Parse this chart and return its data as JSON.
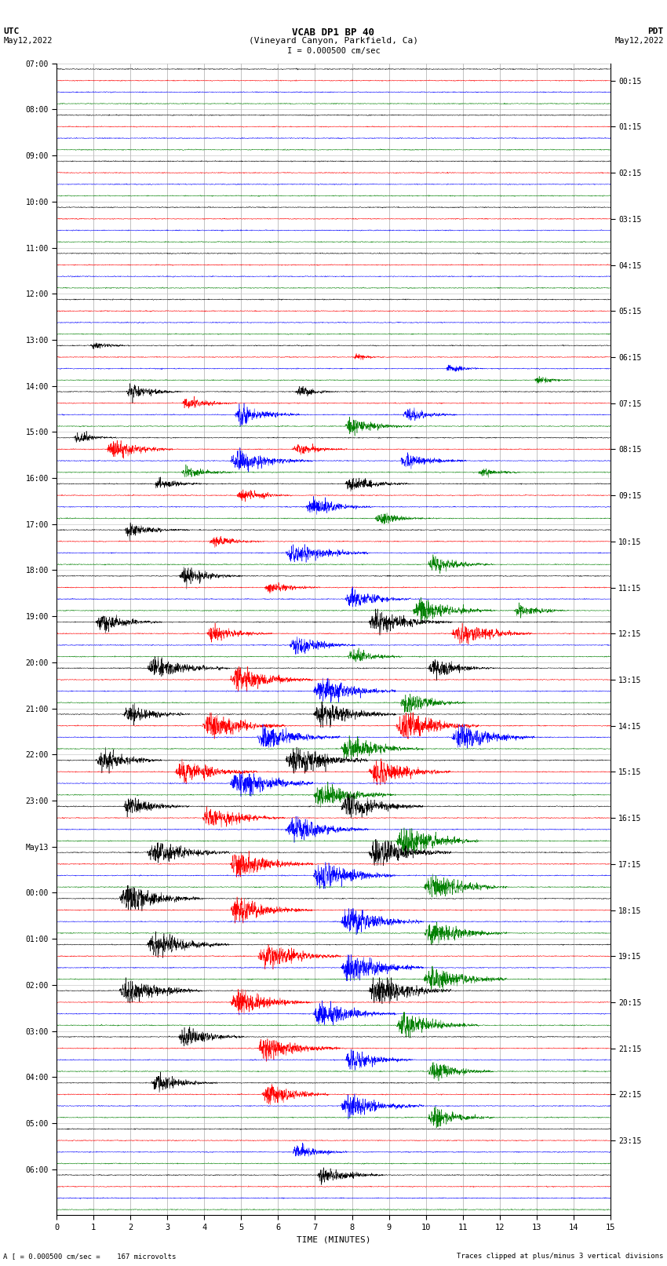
{
  "title_line1": "VCAB DP1 BP 40",
  "title_line2": "(Vineyard Canyon, Parkfield, Ca)",
  "scale_label": "I = 0.000500 cm/sec",
  "left_label_top": "UTC",
  "left_label_date": "May12,2022",
  "right_label_top": "PDT",
  "right_label_date": "May12,2022",
  "bottom_label": "TIME (MINUTES)",
  "footnote_left": "A [ = 0.000500 cm/sec =    167 microvolts",
  "footnote_right": "Traces clipped at plus/minus 3 vertical divisions",
  "left_times": [
    "07:00",
    "08:00",
    "09:00",
    "10:00",
    "11:00",
    "12:00",
    "13:00",
    "14:00",
    "15:00",
    "16:00",
    "17:00",
    "18:00",
    "19:00",
    "20:00",
    "21:00",
    "22:00",
    "23:00",
    "May13",
    "00:00",
    "01:00",
    "02:00",
    "03:00",
    "04:00",
    "05:00",
    "06:00"
  ],
  "right_times": [
    "00:15",
    "01:15",
    "02:15",
    "03:15",
    "04:15",
    "05:15",
    "06:15",
    "07:15",
    "08:15",
    "09:15",
    "10:15",
    "11:15",
    "12:15",
    "13:15",
    "14:15",
    "15:15",
    "16:15",
    "17:15",
    "18:15",
    "19:15",
    "20:15",
    "21:15",
    "22:15",
    "23:15"
  ],
  "n_rows": 25,
  "traces_per_row": 4,
  "colors": [
    "black",
    "red",
    "blue",
    "green"
  ],
  "fig_width": 8.5,
  "fig_height": 16.13,
  "bg_color": "white"
}
